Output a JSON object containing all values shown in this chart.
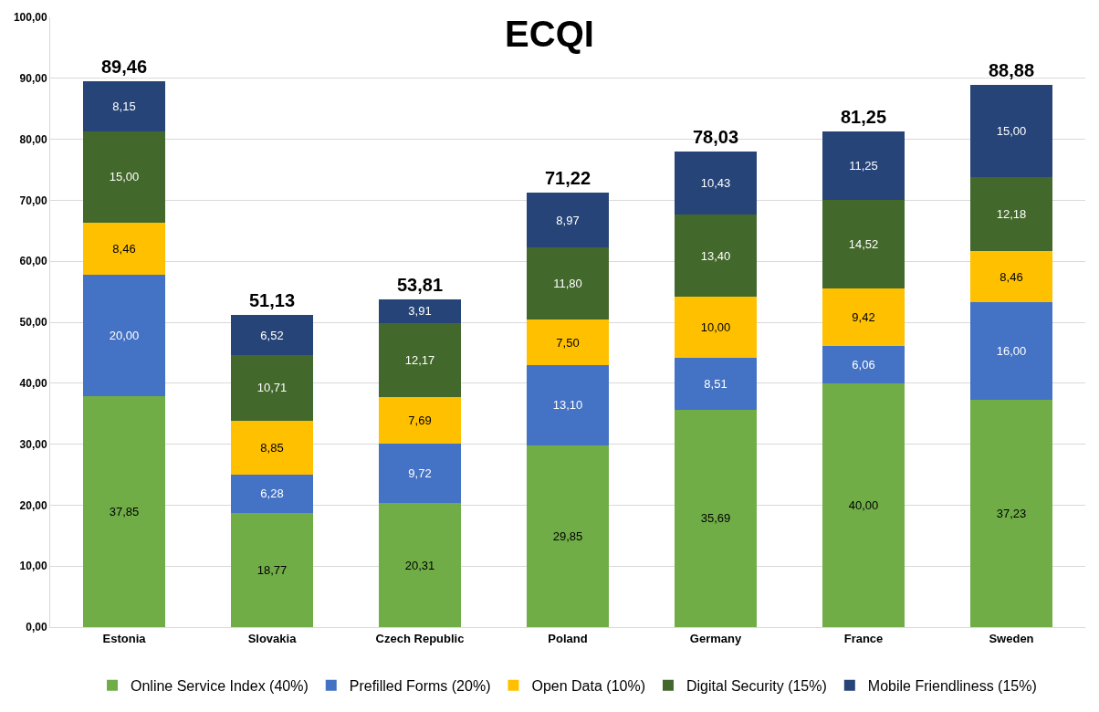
{
  "chart_data": {
    "type": "bar",
    "title": "ECQI",
    "stacked": true,
    "categories": [
      "Estonia",
      "Slovakia",
      "Czech Republic",
      "Poland",
      "Germany",
      "France",
      "Sweden"
    ],
    "series": [
      {
        "name": "Online Service Index (40%)",
        "color": "#70ad47",
        "values": [
          37.85,
          18.77,
          20.31,
          29.85,
          35.69,
          40.0,
          37.23
        ],
        "value_labels": [
          "37,85",
          "18,77",
          "20,31",
          "29,85",
          "35,69",
          "40,00",
          "37,23"
        ]
      },
      {
        "name": "Prefilled Forms (20%)",
        "color": "#4472c4",
        "values": [
          20.0,
          6.28,
          9.72,
          13.1,
          8.51,
          6.06,
          16.0
        ],
        "value_labels": [
          "20,00",
          "6,28",
          "9,72",
          "13,10",
          "8,51",
          "6,06",
          "16,00"
        ]
      },
      {
        "name": "Open Data (10%)",
        "color": "#ffc000",
        "values": [
          8.46,
          8.85,
          7.69,
          7.5,
          10.0,
          9.42,
          8.46
        ],
        "value_labels": [
          "8,46",
          "8,85",
          "7,69",
          "7,50",
          "10,00",
          "9,42",
          "8,46"
        ]
      },
      {
        "name": "Digital Security (15%)",
        "color": "#43682b",
        "values": [
          15.0,
          10.71,
          12.17,
          11.8,
          13.4,
          14.52,
          12.18
        ],
        "value_labels": [
          "15,00",
          "10,71",
          "12,17",
          "11,80",
          "13,40",
          "14,52",
          "12,18"
        ]
      },
      {
        "name": "Mobile Friendliness (15%)",
        "color": "#264478",
        "values": [
          8.15,
          6.52,
          3.91,
          8.97,
          10.43,
          11.25,
          15.0
        ],
        "value_labels": [
          "8,15",
          "6,52",
          "3,91",
          "8,97",
          "10,43",
          "11,25",
          "15,00"
        ]
      }
    ],
    "totals": [
      "89,46",
      "51,13",
      "53,81",
      "71,22",
      "78,03",
      "81,25",
      "88,88"
    ],
    "ylim": [
      0,
      100
    ],
    "yticks": [
      {
        "value": 0,
        "label": "0,00"
      },
      {
        "value": 10,
        "label": "10,00"
      },
      {
        "value": 20,
        "label": "20,00"
      },
      {
        "value": 30,
        "label": "30,00"
      },
      {
        "value": 40,
        "label": "40,00"
      },
      {
        "value": 50,
        "label": "50,00"
      },
      {
        "value": 60,
        "label": "60,00"
      },
      {
        "value": 70,
        "label": "70,00"
      },
      {
        "value": 80,
        "label": "80,00"
      },
      {
        "value": 90,
        "label": "90,00"
      },
      {
        "value": 100,
        "label": "100,00"
      }
    ],
    "grid": "y",
    "legend": "bottom"
  }
}
